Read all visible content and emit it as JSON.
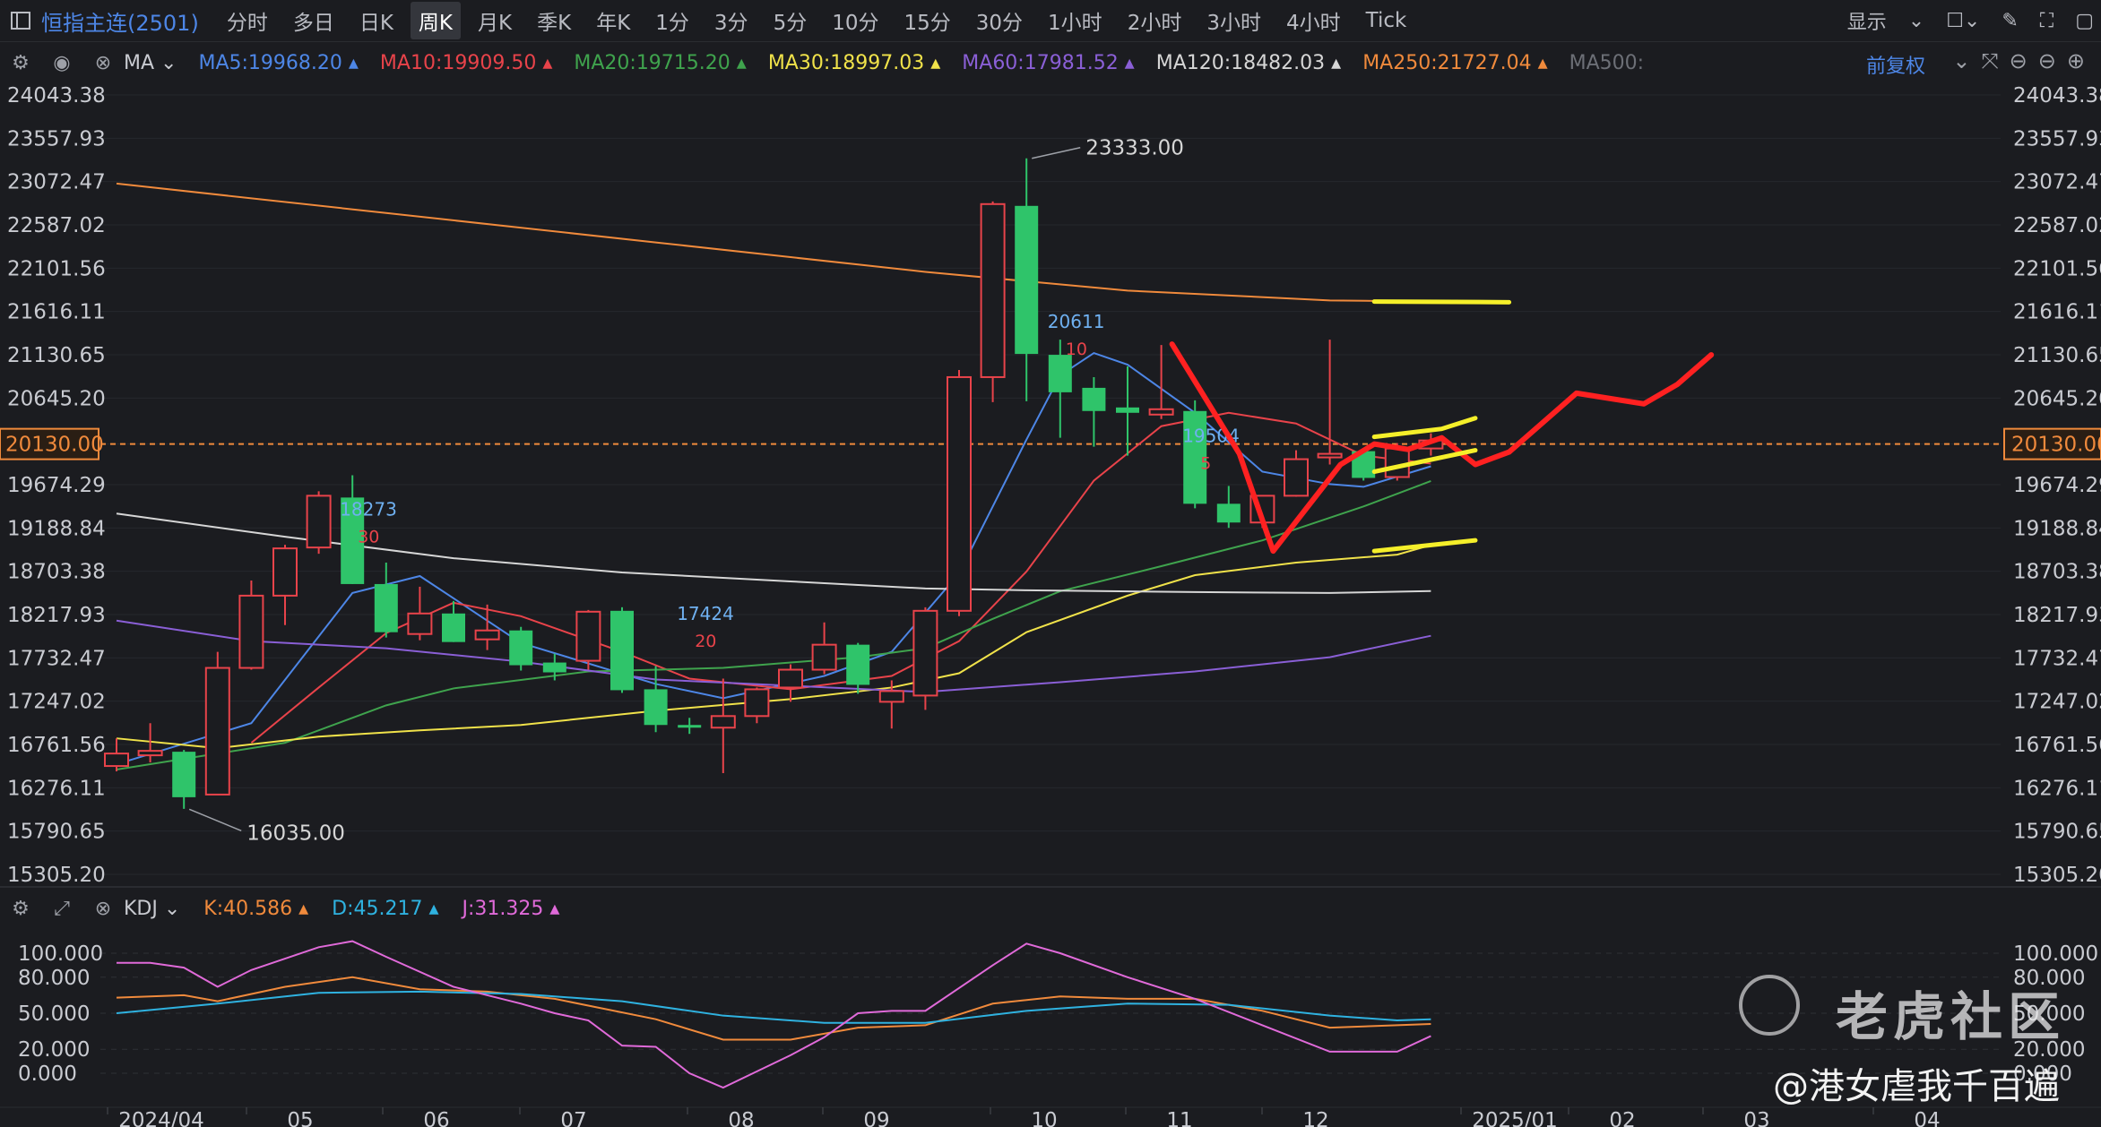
{
  "header": {
    "symbol": "恒指主连(2501)",
    "tabs": [
      "分时",
      "多日",
      "日K",
      "周K",
      "月K",
      "季K",
      "年K",
      "1分",
      "3分",
      "5分",
      "10分",
      "15分",
      "30分",
      "1小时",
      "2小时",
      "3小时",
      "4小时",
      "Tick"
    ],
    "active_tab": "周K",
    "display_label": "显示"
  },
  "ma_bar": {
    "label": "MA",
    "items": [
      {
        "text": "MA5:19968.20",
        "color": "#4d86e6"
      },
      {
        "text": "MA10:19909.50",
        "color": "#e8434a"
      },
      {
        "text": "MA20:19715.20",
        "color": "#3fa34d"
      },
      {
        "text": "MA30:18997.03",
        "color": "#f0e24a"
      },
      {
        "text": "MA60:17981.52",
        "color": "#8a5fd6"
      },
      {
        "text": "MA120:18482.03",
        "color": "#d6d6d6"
      },
      {
        "text": "MA250:21727.04",
        "color": "#f08a3c"
      },
      {
        "text": "MA500:",
        "color": "#6c6f76"
      }
    ],
    "adjust_label": "前复权"
  },
  "kdj_bar": {
    "label": "KDJ",
    "items": [
      {
        "text": "K:40.586",
        "color": "#f08a3c"
      },
      {
        "text": "D:45.217",
        "color": "#2fb2e0"
      },
      {
        "text": "J:31.325",
        "color": "#e06ad9"
      }
    ]
  },
  "watermark": {
    "brand": "老虎社区",
    "signature": "@港女虐我千百遍"
  },
  "chart_data": {
    "type": "candlestick",
    "period": "weekly",
    "price_axis_labels": [
      "24043.38",
      "23557.93",
      "23072.47",
      "22587.02",
      "22101.56",
      "21616.11",
      "21130.65",
      "20645.20",
      "20130.00",
      "19674.29",
      "19188.84",
      "18703.38",
      "18217.93",
      "17732.47",
      "17247.02",
      "16761.56",
      "16276.11",
      "15790.65",
      "15305.20"
    ],
    "ylim": [
      15305.2,
      24043.38
    ],
    "current_price": 20130.0,
    "x_tick_labels": [
      "2024/04",
      "05",
      "06",
      "07",
      "08",
      "09",
      "10",
      "11",
      "12",
      "2025/01",
      "02",
      "03",
      "04"
    ],
    "candles": [
      {
        "o": 16520,
        "h": 16830,
        "l": 16460,
        "c": 16660
      },
      {
        "o": 16640,
        "h": 17000,
        "l": 16560,
        "c": 16690
      },
      {
        "o": 16680,
        "h": 16700,
        "l": 16040,
        "c": 16170
      },
      {
        "o": 16200,
        "h": 17800,
        "l": 16200,
        "c": 17620
      },
      {
        "o": 17620,
        "h": 18600,
        "l": 17600,
        "c": 18430
      },
      {
        "o": 18430,
        "h": 19000,
        "l": 18100,
        "c": 18960
      },
      {
        "o": 18970,
        "h": 19600,
        "l": 18900,
        "c": 19550
      },
      {
        "o": 19530,
        "h": 19780,
        "l": 18560,
        "c": 18560
      },
      {
        "o": 18560,
        "h": 18800,
        "l": 17960,
        "c": 18020
      },
      {
        "o": 18000,
        "h": 18530,
        "l": 17930,
        "c": 18230
      },
      {
        "o": 18230,
        "h": 18370,
        "l": 17910,
        "c": 17910
      },
      {
        "o": 17940,
        "h": 18330,
        "l": 17820,
        "c": 18040
      },
      {
        "o": 18040,
        "h": 18080,
        "l": 17590,
        "c": 17650
      },
      {
        "o": 17680,
        "h": 17780,
        "l": 17480,
        "c": 17570
      },
      {
        "o": 17700,
        "h": 18270,
        "l": 17600,
        "c": 18250
      },
      {
        "o": 18260,
        "h": 18300,
        "l": 17340,
        "c": 17370
      },
      {
        "o": 17380,
        "h": 17640,
        "l": 16900,
        "c": 16980
      },
      {
        "o": 16980,
        "h": 17060,
        "l": 16880,
        "c": 16950
      },
      {
        "o": 16950,
        "h": 17500,
        "l": 16440,
        "c": 17080
      },
      {
        "o": 17080,
        "h": 17400,
        "l": 17000,
        "c": 17380
      },
      {
        "o": 17400,
        "h": 17660,
        "l": 17240,
        "c": 17600
      },
      {
        "o": 17600,
        "h": 18130,
        "l": 17550,
        "c": 17880
      },
      {
        "o": 17880,
        "h": 17900,
        "l": 17330,
        "c": 17430
      },
      {
        "o": 17240,
        "h": 17480,
        "l": 16940,
        "c": 17360
      },
      {
        "o": 17310,
        "h": 18300,
        "l": 17150,
        "c": 18260
      },
      {
        "o": 18260,
        "h": 20960,
        "l": 18200,
        "c": 20880
      },
      {
        "o": 20880,
        "h": 22850,
        "l": 20600,
        "c": 22820
      },
      {
        "o": 22800,
        "h": 23333,
        "l": 20610,
        "c": 21140
      },
      {
        "o": 21130,
        "h": 21300,
        "l": 20200,
        "c": 20710
      },
      {
        "o": 20760,
        "h": 20880,
        "l": 20100,
        "c": 20500
      },
      {
        "o": 20540,
        "h": 21000,
        "l": 20000,
        "c": 20480
      },
      {
        "o": 20460,
        "h": 21240,
        "l": 20410,
        "c": 20520
      },
      {
        "o": 20500,
        "h": 20620,
        "l": 19410,
        "c": 19460
      },
      {
        "o": 19460,
        "h": 19660,
        "l": 19190,
        "c": 19250
      },
      {
        "o": 19250,
        "h": 19550,
        "l": 19190,
        "c": 19550
      },
      {
        "o": 19550,
        "h": 20060,
        "l": 19540,
        "c": 19960
      },
      {
        "o": 19980,
        "h": 21300,
        "l": 19900,
        "c": 20020
      },
      {
        "o": 20050,
        "h": 20060,
        "l": 19720,
        "c": 19750
      },
      {
        "o": 19760,
        "h": 20140,
        "l": 19720,
        "c": 20080
      },
      {
        "o": 20080,
        "h": 20250,
        "l": 20000,
        "c": 20170
      }
    ],
    "moving_averages": [
      {
        "name": "MA5",
        "color": "#4d86e6",
        "points": [
          [
            0,
            16540
          ],
          [
            4,
            17000
          ],
          [
            7,
            18460
          ],
          [
            9,
            18650
          ],
          [
            12,
            17900
          ],
          [
            16,
            17440
          ],
          [
            18,
            17280
          ],
          [
            21,
            17530
          ],
          [
            23,
            17800
          ],
          [
            25,
            18680
          ],
          [
            27,
            20180
          ],
          [
            28,
            20900
          ],
          [
            29,
            21150
          ],
          [
            30,
            21020
          ],
          [
            32,
            20480
          ],
          [
            34,
            19820
          ],
          [
            36,
            19680
          ],
          [
            37,
            19650
          ],
          [
            39,
            19880
          ]
        ]
      },
      {
        "name": "MA10",
        "color": "#e8434a",
        "points": [
          [
            4,
            16780
          ],
          [
            6,
            17400
          ],
          [
            8,
            18010
          ],
          [
            10,
            18350
          ],
          [
            12,
            18200
          ],
          [
            15,
            17800
          ],
          [
            17,
            17500
          ],
          [
            20,
            17380
          ],
          [
            23,
            17530
          ],
          [
            25,
            17920
          ],
          [
            27,
            18700
          ],
          [
            29,
            19720
          ],
          [
            31,
            20330
          ],
          [
            33,
            20480
          ],
          [
            35,
            20360
          ],
          [
            37,
            20000
          ],
          [
            39,
            19910
          ]
        ]
      },
      {
        "name": "MA20",
        "color": "#3fa34d",
        "points": [
          [
            0,
            16480
          ],
          [
            5,
            16780
          ],
          [
            8,
            17200
          ],
          [
            10,
            17390
          ],
          [
            14,
            17580
          ],
          [
            18,
            17620
          ],
          [
            22,
            17740
          ],
          [
            24,
            17840
          ],
          [
            26,
            18170
          ],
          [
            28,
            18480
          ],
          [
            31,
            18760
          ],
          [
            34,
            19050
          ],
          [
            37,
            19430
          ],
          [
            39,
            19715
          ]
        ]
      },
      {
        "name": "MA30",
        "color": "#f0e24a",
        "points": [
          [
            0,
            16830
          ],
          [
            3,
            16720
          ],
          [
            6,
            16850
          ],
          [
            9,
            16920
          ],
          [
            12,
            16980
          ],
          [
            16,
            17140
          ],
          [
            20,
            17270
          ],
          [
            23,
            17400
          ],
          [
            25,
            17560
          ],
          [
            27,
            18020
          ],
          [
            30,
            18430
          ],
          [
            32,
            18660
          ],
          [
            35,
            18800
          ],
          [
            38,
            18890
          ],
          [
            39,
            18997
          ]
        ]
      },
      {
        "name": "MA60",
        "color": "#8a5fd6",
        "points": [
          [
            0,
            18150
          ],
          [
            4,
            17920
          ],
          [
            8,
            17840
          ],
          [
            12,
            17690
          ],
          [
            16,
            17490
          ],
          [
            20,
            17420
          ],
          [
            24,
            17350
          ],
          [
            28,
            17460
          ],
          [
            32,
            17580
          ],
          [
            36,
            17740
          ],
          [
            39,
            17980
          ]
        ]
      },
      {
        "name": "MA120",
        "color": "#d6d6d6",
        "points": [
          [
            0,
            19350
          ],
          [
            5,
            19090
          ],
          [
            10,
            18850
          ],
          [
            15,
            18690
          ],
          [
            20,
            18590
          ],
          [
            24,
            18510
          ],
          [
            27,
            18490
          ],
          [
            32,
            18470
          ],
          [
            36,
            18460
          ],
          [
            39,
            18482
          ]
        ]
      },
      {
        "name": "MA250",
        "color": "#f08a3c",
        "points": [
          [
            0,
            23050
          ],
          [
            8,
            22720
          ],
          [
            16,
            22390
          ],
          [
            24,
            22060
          ],
          [
            30,
            21850
          ],
          [
            36,
            21740
          ],
          [
            39,
            21727
          ]
        ]
      }
    ],
    "annotations": [
      {
        "text": "23333.00",
        "type": "high"
      },
      {
        "text": "16035.00",
        "type": "low"
      },
      {
        "text": "18273",
        "sub": "30"
      },
      {
        "text": "17424",
        "sub": "20"
      },
      {
        "text": "20611",
        "sub": "10"
      },
      {
        "text": "19504",
        "sub": "5"
      }
    ],
    "kdj": {
      "axis_labels": [
        "100.000",
        "80.000",
        "50.000",
        "20.000",
        "0.000"
      ],
      "ylim": [
        0,
        100
      ],
      "K": [
        [
          0,
          63
        ],
        [
          2,
          65
        ],
        [
          3,
          60
        ],
        [
          5,
          72
        ],
        [
          7,
          80
        ],
        [
          9,
          70
        ],
        [
          11,
          68
        ],
        [
          13,
          62
        ],
        [
          16,
          45
        ],
        [
          18,
          28
        ],
        [
          20,
          28
        ],
        [
          22,
          38
        ],
        [
          24,
          40
        ],
        [
          26,
          58
        ],
        [
          28,
          64
        ],
        [
          30,
          62
        ],
        [
          32,
          62
        ],
        [
          34,
          52
        ],
        [
          36,
          38
        ],
        [
          38,
          40
        ],
        [
          39,
          41
        ]
      ],
      "D": [
        [
          0,
          50
        ],
        [
          3,
          58
        ],
        [
          6,
          67
        ],
        [
          9,
          68
        ],
        [
          12,
          66
        ],
        [
          15,
          60
        ],
        [
          18,
          48
        ],
        [
          21,
          42
        ],
        [
          24,
          42
        ],
        [
          27,
          52
        ],
        [
          30,
          58
        ],
        [
          33,
          57
        ],
        [
          36,
          48
        ],
        [
          38,
          44
        ],
        [
          39,
          45
        ]
      ],
      "J": [
        [
          0,
          92
        ],
        [
          1,
          92
        ],
        [
          2,
          88
        ],
        [
          3,
          72
        ],
        [
          4,
          86
        ],
        [
          6,
          105
        ],
        [
          7,
          110
        ],
        [
          8,
          97
        ],
        [
          10,
          72
        ],
        [
          12,
          58
        ],
        [
          13,
          50
        ],
        [
          14,
          44
        ],
        [
          15,
          23
        ],
        [
          16,
          22
        ],
        [
          17,
          0
        ],
        [
          18,
          -12
        ],
        [
          20,
          15
        ],
        [
          21,
          30
        ],
        [
          22,
          50
        ],
        [
          23,
          52
        ],
        [
          24,
          52
        ],
        [
          26,
          90
        ],
        [
          27,
          108
        ],
        [
          28,
          100
        ],
        [
          30,
          80
        ],
        [
          32,
          62
        ],
        [
          34,
          40
        ],
        [
          36,
          18
        ],
        [
          38,
          18
        ],
        [
          39,
          31
        ]
      ]
    },
    "drawn_forecast": {
      "red_path": [
        [
          31,
          21250
        ],
        [
          33,
          20020
        ],
        [
          34,
          18930
        ],
        [
          36,
          19900
        ],
        [
          37,
          20130
        ],
        [
          38,
          20070
        ],
        [
          39,
          20200
        ],
        [
          40,
          19900
        ],
        [
          41,
          20040
        ],
        [
          43,
          20700
        ],
        [
          45,
          20580
        ],
        [
          46,
          20800
        ],
        [
          47,
          21130
        ]
      ],
      "yellow_segments": [
        [
          [
            37,
            21727
          ],
          [
            41,
            21720
          ]
        ],
        [
          [
            37,
            20210
          ],
          [
            39,
            20300
          ],
          [
            40,
            20420
          ]
        ],
        [
          [
            37,
            19820
          ],
          [
            40,
            20060
          ]
        ],
        [
          [
            37,
            18930
          ],
          [
            40,
            19050
          ]
        ]
      ]
    },
    "grid": true,
    "legend": "top"
  }
}
